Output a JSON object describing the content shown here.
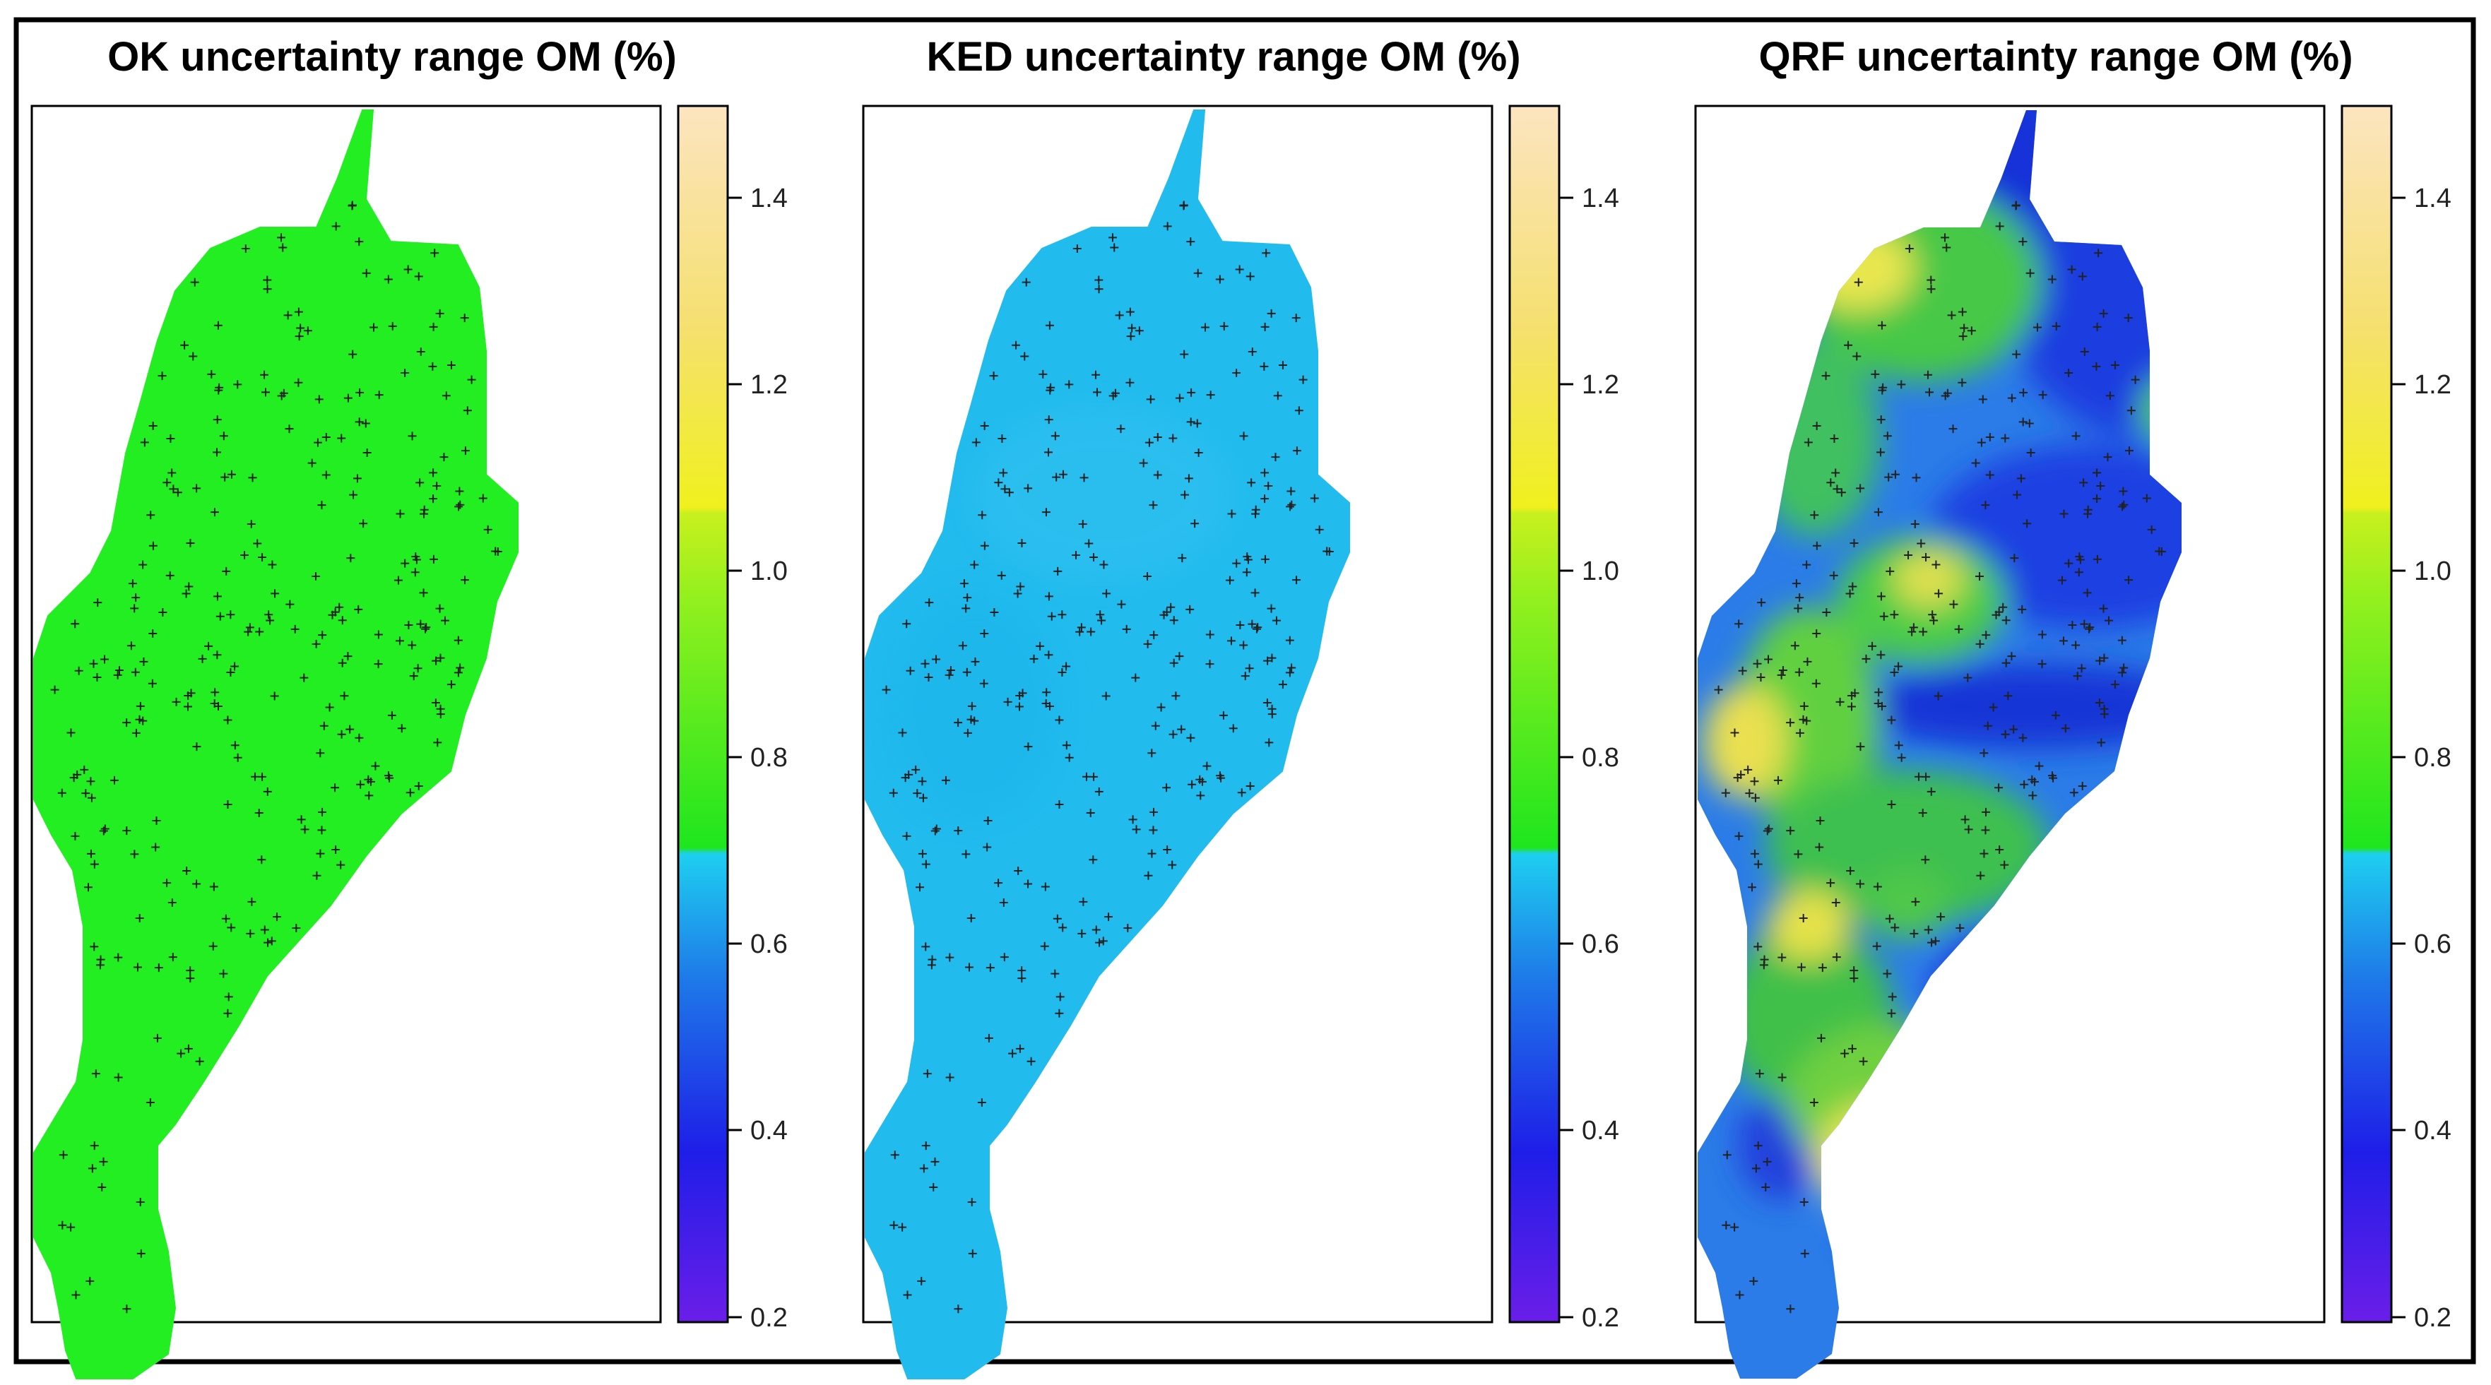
{
  "chart_data": [
    {
      "type": "heatmap",
      "title": "OK uncertainty range OM (%)",
      "method": "OK",
      "legend_ticks": [
        "0.2",
        "0.4",
        "0.6",
        "0.8",
        "1.0",
        "1.2",
        "1.4"
      ],
      "scale_range": [
        0.2,
        1.5
      ],
      "dominant_value": 0.75,
      "points_marker": "+"
    },
    {
      "type": "heatmap",
      "title": "KED uncertainty range OM (%)",
      "method": "KED",
      "legend_ticks": [
        "0.2",
        "0.4",
        "0.6",
        "0.8",
        "1.0",
        "1.2",
        "1.4"
      ],
      "scale_range": [
        0.2,
        1.5
      ],
      "dominant_value": 0.58,
      "points_marker": "+"
    },
    {
      "type": "heatmap",
      "title": "QRF uncertainty range OM (%)",
      "method": "QRF",
      "legend_ticks": [
        "0.2",
        "0.4",
        "0.6",
        "0.8",
        "1.0",
        "1.2",
        "1.4"
      ],
      "scale_range": [
        0.2,
        1.5
      ],
      "value_range": [
        0.3,
        1.2
      ],
      "points_marker": "+"
    }
  ],
  "colors": {
    "ok_fill": "#22ee22",
    "ked_fill": "#22bbee",
    "qrf_low": "#1e3ce6",
    "qrf_mid": "#46c846",
    "qrf_high": "#f0e646",
    "scale": [
      "#6a1ee8",
      "#1e1ee8",
      "#1e78e8",
      "#1ecff0",
      "#1ee61e",
      "#c8f01e",
      "#f0f01e",
      "#f5d878",
      "#fce4c0"
    ]
  }
}
